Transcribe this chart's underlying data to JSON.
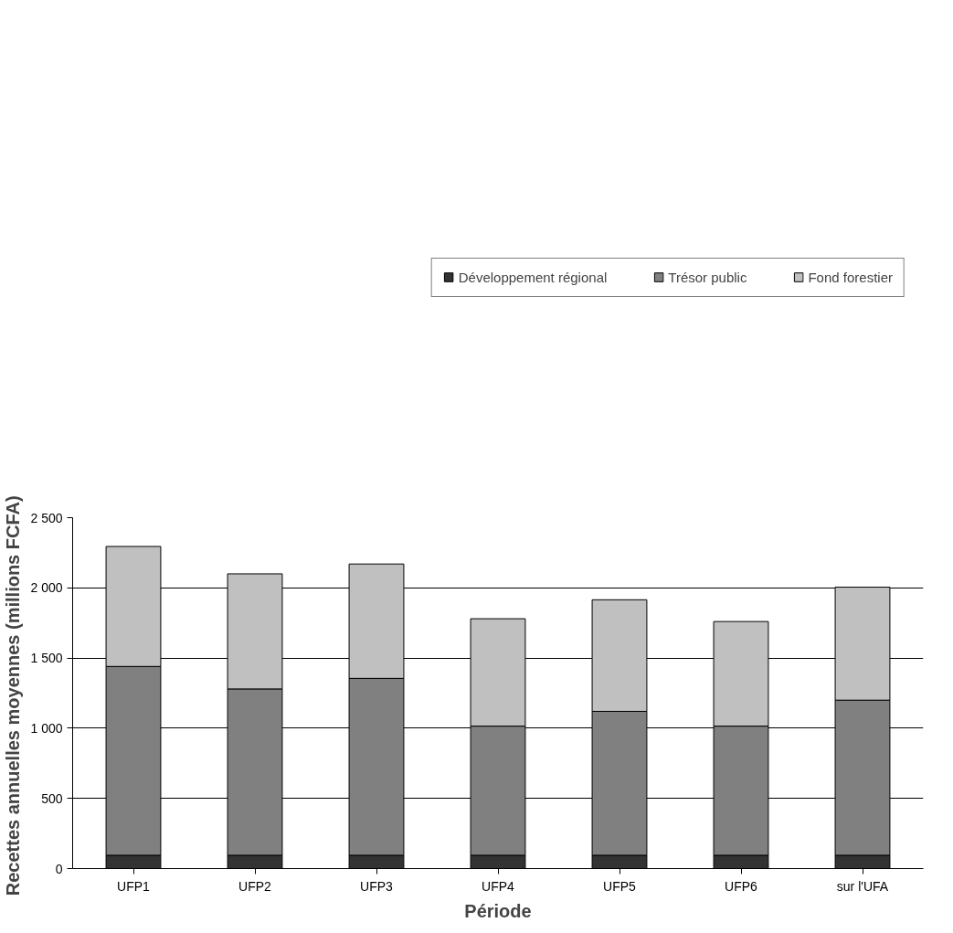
{
  "chart_data": {
    "type": "bar",
    "stacked": true,
    "xlabel": "Période",
    "ylabel": "Recettes annuelles moyennes (millions  FCFA)",
    "categories": [
      "UFP1",
      "UFP2",
      "UFP3",
      "UFP4",
      "UFP5",
      "UFP6",
      "sur l'UFA"
    ],
    "series": [
      {
        "name": "Développement régional",
        "color": "#333333",
        "values": [
          95,
          95,
          95,
          95,
          95,
          95,
          95
        ]
      },
      {
        "name": "Trésor public",
        "color": "#808080",
        "values": [
          1345,
          1185,
          1260,
          920,
          1025,
          920,
          1105
        ]
      },
      {
        "name": "Fond forestier",
        "color": "#c0c0c0",
        "values": [
          855,
          820,
          815,
          765,
          795,
          745,
          805
        ]
      }
    ],
    "ylim": [
      0,
      2500
    ],
    "yticks": [
      0,
      {
        "value": 500,
        "label": "500"
      },
      {
        "value": 1000,
        "label": "1 000"
      },
      {
        "value": 1500,
        "label": "1 500"
      },
      {
        "value": 2000,
        "label": "2 000"
      },
      {
        "value": 2500,
        "label": "2 500"
      }
    ],
    "grid": "y",
    "legend": "top"
  }
}
